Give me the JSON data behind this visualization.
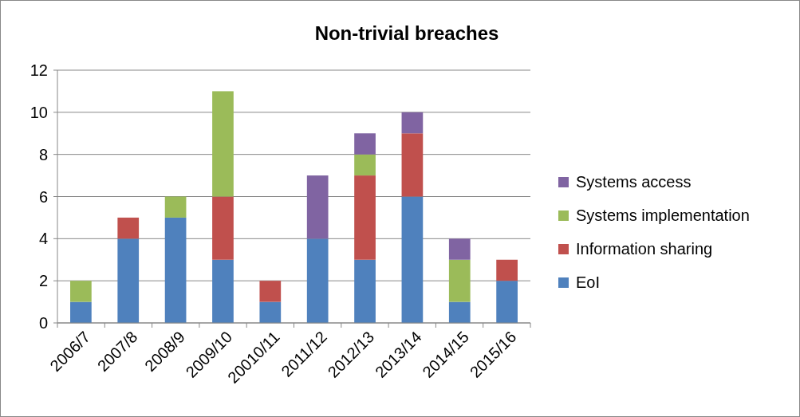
{
  "chart_data": {
    "type": "bar",
    "title": "Non-trivial breaches",
    "stacked": true,
    "categories": [
      "2006/7",
      "2007/8",
      "2008/9",
      "2009/10",
      "20010/11",
      "2011/12",
      "2012/13",
      "2013/14",
      "2014/15",
      "2015/16"
    ],
    "series": [
      {
        "name": "EoI",
        "color": "#4f81bd",
        "values": [
          1,
          4,
          5,
          3,
          1,
          4,
          3,
          6,
          1,
          2
        ]
      },
      {
        "name": "Information sharing",
        "color": "#c0504d",
        "values": [
          0,
          1,
          0,
          3,
          1,
          0,
          4,
          3,
          0,
          1
        ]
      },
      {
        "name": "Systems implementation",
        "color": "#9bbb59",
        "values": [
          1,
          0,
          1,
          5,
          0,
          0,
          1,
          0,
          2,
          0
        ]
      },
      {
        "name": "Systems access",
        "color": "#8064a2",
        "values": [
          0,
          0,
          0,
          0,
          0,
          3,
          1,
          1,
          1,
          0
        ]
      }
    ],
    "ylim": [
      0,
      12
    ],
    "yticks": [
      0,
      2,
      4,
      6,
      8,
      10,
      12
    ],
    "grid": "y",
    "legend": "right"
  }
}
